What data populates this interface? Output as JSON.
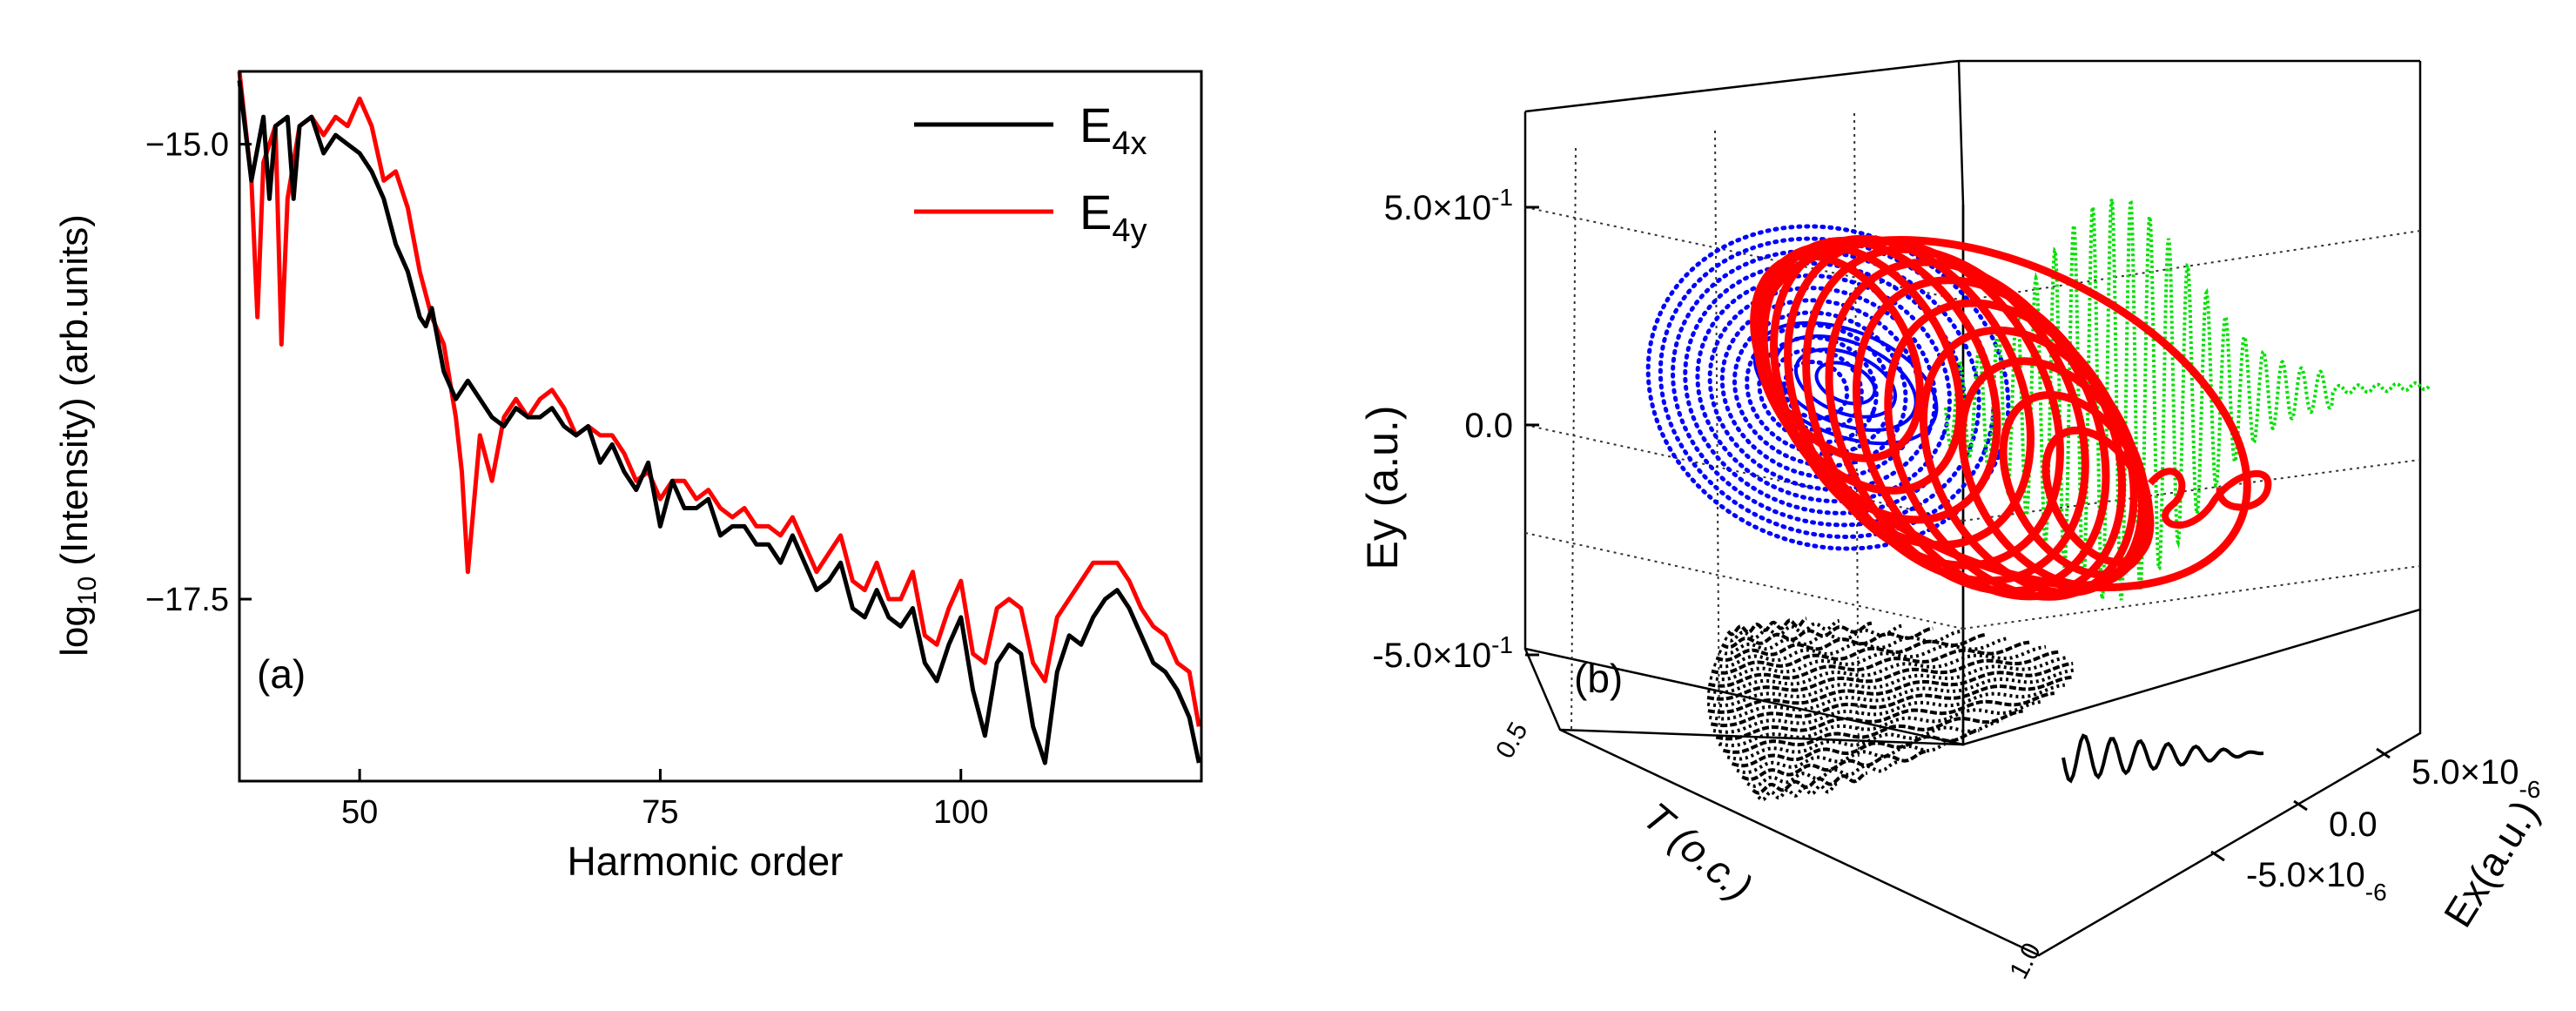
{
  "colors": {
    "ex_line": "#000000",
    "ey_line": "#ff0000",
    "xz_projection": "#0000ff",
    "yz_projection": "#00e000",
    "xy_projection": "#000000",
    "trajectory": "#ff0000"
  },
  "chart_data": [
    {
      "type": "line",
      "panel_label": "(a)",
      "xlabel": "Harmonic order",
      "ylabel_main": "log",
      "ylabel_sub": "10",
      "ylabel_rest": " (Intensity) (arb.units)",
      "xlim": [
        40,
        120
      ],
      "ylim": [
        -18.5,
        -14.6
      ],
      "xticks": [
        50,
        75,
        100
      ],
      "xtick_labels": [
        "50",
        "75",
        "100"
      ],
      "yticks": [
        -15.0,
        -17.5
      ],
      "ytick_labels": [
        "−15.0",
        "−17.5"
      ],
      "legend_position": "top-right",
      "series": [
        {
          "name": "E4x",
          "label_main": "E",
          "label_sub": "4x",
          "color": "#000000",
          "x": [
            40,
            41,
            42,
            42.5,
            43,
            44,
            44.5,
            45,
            46,
            47,
            48,
            49,
            50,
            51,
            52,
            53,
            54,
            55,
            55.5,
            56,
            57,
            58,
            59,
            60,
            61,
            62,
            63,
            64,
            65,
            66,
            67,
            68,
            69,
            70,
            71,
            72,
            73,
            74,
            75,
            76,
            77,
            78,
            79,
            80,
            81,
            82,
            83,
            84,
            85,
            86,
            87,
            88,
            89,
            90,
            91,
            92,
            93,
            94,
            95,
            96,
            97,
            98,
            99,
            100,
            101,
            102,
            103,
            104,
            105,
            106,
            107,
            108,
            109,
            110,
            111,
            112,
            113,
            114,
            115,
            116,
            117,
            118,
            119,
            119.8
          ],
          "y": [
            -14.65,
            -15.2,
            -14.85,
            -15.3,
            -14.9,
            -14.85,
            -15.3,
            -14.9,
            -14.85,
            -15.05,
            -14.95,
            -15.0,
            -15.05,
            -15.15,
            -15.3,
            -15.55,
            -15.7,
            -15.95,
            -16.0,
            -15.9,
            -16.25,
            -16.4,
            -16.3,
            -16.4,
            -16.5,
            -16.55,
            -16.45,
            -16.5,
            -16.5,
            -16.45,
            -16.55,
            -16.6,
            -16.55,
            -16.75,
            -16.65,
            -16.8,
            -16.9,
            -16.75,
            -17.1,
            -16.85,
            -17.0,
            -17.0,
            -16.95,
            -17.15,
            -17.1,
            -17.1,
            -17.2,
            -17.2,
            -17.3,
            -17.15,
            -17.3,
            -17.45,
            -17.4,
            -17.3,
            -17.55,
            -17.6,
            -17.45,
            -17.6,
            -17.65,
            -17.55,
            -17.85,
            -17.95,
            -17.75,
            -17.6,
            -18.0,
            -18.25,
            -17.85,
            -17.75,
            -17.8,
            -18.2,
            -18.4,
            -17.9,
            -17.7,
            -17.75,
            -17.6,
            -17.5,
            -17.45,
            -17.55,
            -17.7,
            -17.85,
            -17.9,
            -18.0,
            -18.15,
            -18.4
          ]
        },
        {
          "name": "E4y",
          "label_main": "E",
          "label_sub": "4y",
          "color": "#ff0000",
          "x": [
            40,
            41,
            41.5,
            42,
            43,
            43.5,
            44,
            45,
            46,
            47,
            48,
            49,
            50,
            51,
            52,
            53,
            54,
            55,
            56,
            57,
            58,
            58.5,
            59,
            60,
            61,
            62,
            63,
            64,
            65,
            66,
            67,
            68,
            69,
            70,
            71,
            72,
            73,
            74,
            75,
            76,
            77,
            78,
            79,
            80,
            81,
            82,
            83,
            84,
            85,
            86,
            87,
            88,
            89,
            90,
            91,
            92,
            93,
            94,
            95,
            96,
            97,
            98,
            99,
            100,
            101,
            102,
            103,
            104,
            105,
            106,
            107,
            108,
            109,
            110,
            111,
            112,
            113,
            114,
            115,
            116,
            117,
            118,
            119,
            119.8
          ],
          "y": [
            -14.6,
            -15.2,
            -15.95,
            -15.1,
            -14.9,
            -16.1,
            -15.3,
            -14.9,
            -14.85,
            -14.95,
            -14.85,
            -14.9,
            -14.75,
            -14.9,
            -15.2,
            -15.15,
            -15.35,
            -15.7,
            -15.95,
            -16.1,
            -16.5,
            -16.8,
            -17.35,
            -16.6,
            -16.85,
            -16.5,
            -16.4,
            -16.5,
            -16.4,
            -16.35,
            -16.45,
            -16.6,
            -16.55,
            -16.6,
            -16.6,
            -16.7,
            -16.85,
            -16.8,
            -16.95,
            -16.85,
            -16.85,
            -16.95,
            -16.9,
            -17.0,
            -17.05,
            -17.0,
            -17.1,
            -17.1,
            -17.15,
            -17.05,
            -17.2,
            -17.35,
            -17.25,
            -17.15,
            -17.4,
            -17.45,
            -17.3,
            -17.5,
            -17.5,
            -17.35,
            -17.7,
            -17.75,
            -17.55,
            -17.4,
            -17.8,
            -17.85,
            -17.55,
            -17.5,
            -17.55,
            -17.85,
            -17.95,
            -17.6,
            -17.5,
            -17.4,
            -17.3,
            -17.3,
            -17.3,
            -17.4,
            -17.55,
            -17.65,
            -17.7,
            -17.85,
            -17.9,
            -18.2
          ]
        }
      ]
    },
    {
      "type": "3d-trajectory",
      "panel_label": "(b)",
      "zlabel": "Ey (a.u.)",
      "xlabel": "Ex(a.u.)",
      "tlabel": "T (o.c.)",
      "ey_ticks": [
        0.5,
        0.0,
        -0.5
      ],
      "ey_tick_labels": [
        {
          "main": "5.0×10",
          "exp": "-1"
        },
        {
          "main": "0.0",
          "exp": ""
        },
        {
          "main": "-5.0×10",
          "exp": "-1"
        }
      ],
      "ex_ticks": [
        5e-06,
        0.0,
        -5e-06
      ],
      "ex_tick_labels": [
        {
          "main": "5.0×10",
          "exp": "-6"
        },
        {
          "main": "0.0",
          "exp": ""
        },
        {
          "main": "-5.0×10",
          "exp": "-6"
        }
      ],
      "t_ticks": [
        0.5,
        1.0
      ],
      "t_tick_labels": [
        "0.5",
        "1.0"
      ],
      "series": [
        {
          "name": "3D field trajectory",
          "color": "#ff0000"
        },
        {
          "name": "Ex-Ey projection",
          "color": "#0000ff"
        },
        {
          "name": "T-Ey projection",
          "color": "#00e000"
        },
        {
          "name": "T-Ex projection",
          "color": "#000000"
        }
      ]
    }
  ]
}
